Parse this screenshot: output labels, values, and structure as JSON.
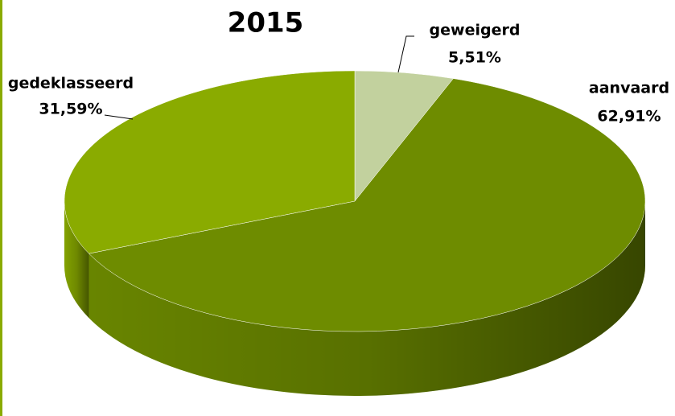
{
  "chart_data": {
    "type": "pie",
    "title": "2015",
    "categories": [
      "geweigerd",
      "aanvaard",
      "gedeklasseerd"
    ],
    "values": [
      5.51,
      62.91,
      31.59
    ],
    "value_labels": [
      "5,51%",
      "62,91%",
      "31,59%"
    ],
    "colors": [
      "#c2d19e",
      "#6e8c00",
      "#8aab00"
    ]
  }
}
